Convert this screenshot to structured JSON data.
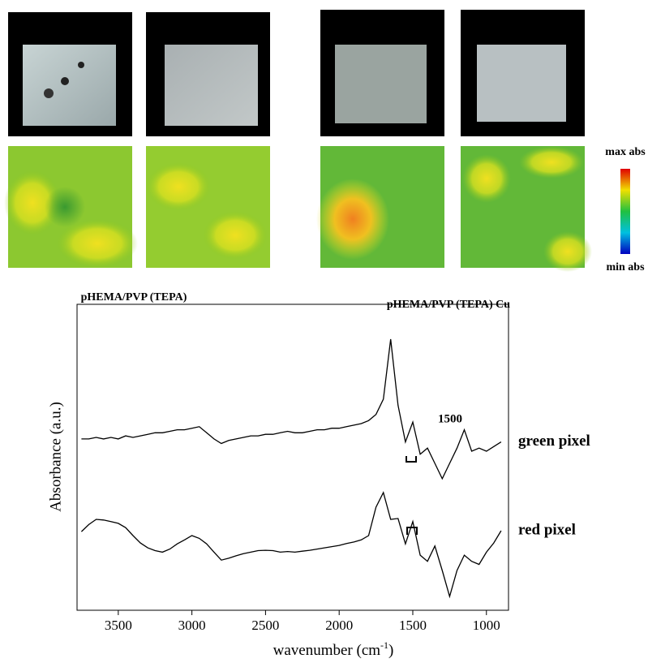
{
  "figure": {
    "panel_labels": [
      "pHEMA/PVP (TEPA)",
      "pHEMA/PVP (TEPA) Cu"
    ],
    "colorbar": {
      "max": "max abs",
      "min": "min abs"
    }
  },
  "chart_data": {
    "type": "line",
    "xlabel_parts": [
      "wavenumber (cm",
      "-1",
      ")"
    ],
    "ylabel": "Absorbance (a.u.)",
    "x": [
      3750,
      3700,
      3650,
      3600,
      3550,
      3500,
      3450,
      3400,
      3350,
      3300,
      3250,
      3200,
      3150,
      3100,
      3050,
      3000,
      2950,
      2900,
      2850,
      2800,
      2750,
      2700,
      2650,
      2600,
      2550,
      2500,
      2450,
      2400,
      2350,
      2300,
      2250,
      2200,
      2150,
      2100,
      2050,
      2000,
      1950,
      1900,
      1850,
      1800,
      1750,
      1700,
      1650,
      1600,
      1550,
      1500,
      1450,
      1400,
      1350,
      1300,
      1250,
      1200,
      1150,
      1100,
      1050,
      1000,
      950,
      900
    ],
    "series": [
      {
        "name": "green pixel",
        "color": "#000000",
        "values": [
          5.6,
          5.6,
          5.65,
          5.6,
          5.65,
          5.6,
          5.7,
          5.65,
          5.7,
          5.75,
          5.8,
          5.8,
          5.85,
          5.9,
          5.9,
          5.95,
          6.0,
          5.8,
          5.6,
          5.45,
          5.55,
          5.6,
          5.65,
          5.7,
          5.7,
          5.75,
          5.75,
          5.8,
          5.85,
          5.8,
          5.8,
          5.85,
          5.9,
          5.9,
          5.95,
          5.95,
          6.0,
          6.05,
          6.1,
          6.2,
          6.4,
          6.9,
          8.86,
          6.7,
          5.5,
          6.15,
          5.1,
          5.3,
          4.8,
          4.3,
          4.8,
          5.3,
          5.9,
          5.2,
          5.3,
          5.2,
          5.35,
          5.5
        ]
      },
      {
        "name": "red pixel",
        "color": "#000000",
        "values": [
          2.57,
          2.8,
          2.97,
          2.95,
          2.9,
          2.84,
          2.7,
          2.44,
          2.2,
          2.04,
          1.95,
          1.9,
          2.0,
          2.17,
          2.3,
          2.44,
          2.35,
          2.17,
          1.9,
          1.64,
          1.7,
          1.78,
          1.85,
          1.9,
          1.95,
          1.96,
          1.95,
          1.9,
          1.92,
          1.9,
          1.93,
          1.96,
          2.0,
          2.04,
          2.08,
          2.12,
          2.18,
          2.23,
          2.3,
          2.44,
          3.37,
          3.85,
          2.97,
          3.0,
          2.17,
          2.9,
          1.8,
          1.6,
          2.1,
          1.3,
          0.45,
          1.3,
          1.8,
          1.6,
          1.5,
          1.9,
          2.2,
          2.6
        ]
      }
    ],
    "annotations": [
      "1500"
    ],
    "xlim": [
      3780,
      850
    ],
    "xticks": [
      3500,
      3000,
      2500,
      2000,
      1500,
      1000
    ],
    "ylim": [
      0,
      10
    ]
  }
}
